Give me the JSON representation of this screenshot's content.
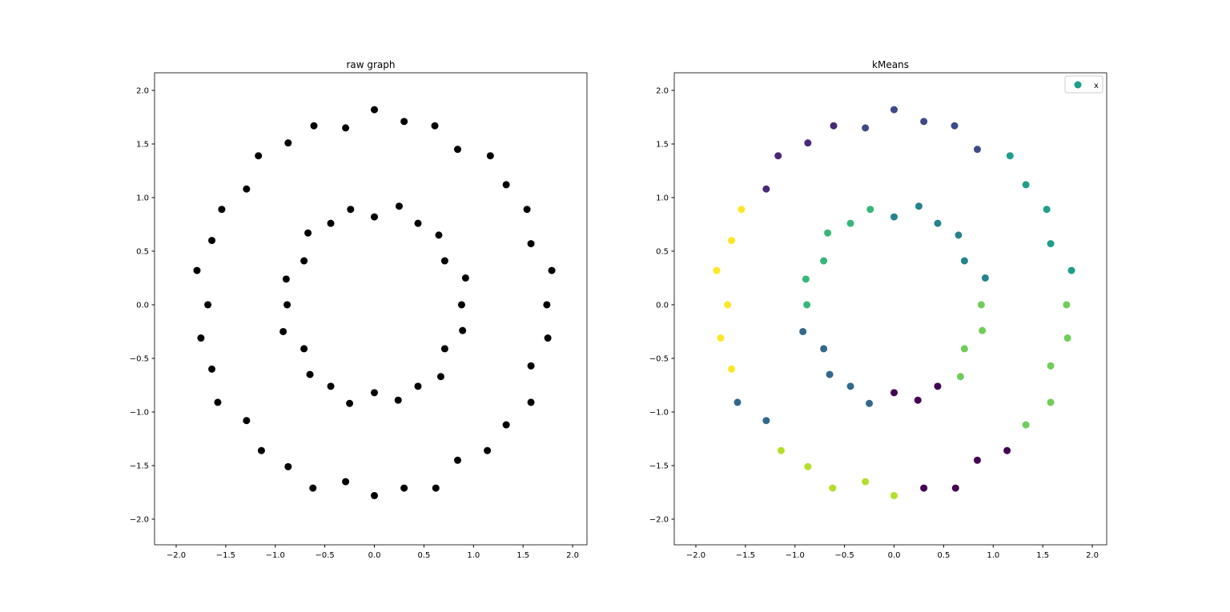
{
  "chart_data": [
    {
      "type": "scatter",
      "title": "raw graph",
      "color": "#000000",
      "x": [
        1.74,
        1.79,
        1.58,
        1.54,
        1.33,
        1.17,
        0.84,
        0.61,
        0.3,
        0,
        -0.29,
        -0.61,
        -0.87,
        -1.17,
        -1.29,
        -1.54,
        -1.64,
        -1.79,
        -1.68,
        -1.75,
        -1.64,
        -1.58,
        -1.29,
        -1.14,
        -0.87,
        -0.62,
        -0.29,
        0,
        0.3,
        0.62,
        0.84,
        1.14,
        1.33,
        1.58,
        1.58,
        1.75,
        0.88,
        0.92,
        0.71,
        0.65,
        0.44,
        0.25,
        0,
        -0.24,
        -0.44,
        -0.67,
        -0.71,
        -0.89,
        -0.88,
        -0.92,
        -0.71,
        -0.65,
        -0.44,
        -0.25,
        0,
        0.24,
        0.44,
        0.67,
        0.71,
        0.89
      ],
      "y": [
        0,
        0.32,
        0.57,
        0.89,
        1.12,
        1.39,
        1.45,
        1.67,
        1.71,
        1.82,
        1.65,
        1.67,
        1.51,
        1.39,
        1.08,
        0.89,
        0.6,
        0.32,
        0,
        -0.31,
        -0.6,
        -0.91,
        -1.08,
        -1.36,
        -1.51,
        -1.71,
        -1.65,
        -1.78,
        -1.71,
        -1.71,
        -1.45,
        -1.36,
        -1.12,
        -0.91,
        -0.57,
        -0.31,
        0,
        0.25,
        0.41,
        0.65,
        0.76,
        0.92,
        0.82,
        0.89,
        0.76,
        0.67,
        0.41,
        0.24,
        0,
        -0.25,
        -0.41,
        -0.65,
        -0.76,
        -0.92,
        -0.82,
        -0.89,
        -0.76,
        -0.67,
        -0.41,
        -0.24
      ],
      "xlim": [
        -2.218,
        2.145
      ],
      "ylim": [
        -2.239,
        2.164
      ],
      "xticks": [
        {
          "value": -2.0,
          "label": "−2.0"
        },
        {
          "value": -1.5,
          "label": "−1.5"
        },
        {
          "value": -1.0,
          "label": "−1.0"
        },
        {
          "value": -0.5,
          "label": "−0.5"
        },
        {
          "value": 0.0,
          "label": "0.0"
        },
        {
          "value": 0.5,
          "label": "0.5"
        },
        {
          "value": 1.0,
          "label": "1.0"
        },
        {
          "value": 1.5,
          "label": "1.5"
        },
        {
          "value": 2.0,
          "label": "2.0"
        }
      ],
      "yticks": [
        {
          "value": -2.0,
          "label": "−2.0"
        },
        {
          "value": -1.5,
          "label": "−1.5"
        },
        {
          "value": -1.0,
          "label": "−1.0"
        },
        {
          "value": -0.5,
          "label": "−0.5"
        },
        {
          "value": 0.0,
          "label": "0.0"
        },
        {
          "value": 0.5,
          "label": "0.5"
        },
        {
          "value": 1.0,
          "label": "1.0"
        },
        {
          "value": 1.5,
          "label": "1.5"
        },
        {
          "value": 2.0,
          "label": "2.0"
        }
      ]
    },
    {
      "type": "scatter",
      "title": "kMeans",
      "legend": "upper right",
      "series": [
        {
          "name": "x",
          "color": "#1f9e89",
          "x": [
            1.74,
            1.79,
            1.58,
            1.54,
            1.33,
            1.17,
            0.84,
            0.61,
            0.3,
            0,
            -0.29,
            -0.61,
            -0.87,
            -1.17,
            -1.29,
            -1.54,
            -1.64,
            -1.79,
            -1.68,
            -1.75,
            -1.64,
            -1.58,
            -1.29,
            -1.14,
            -0.87,
            -0.62,
            -0.29,
            0,
            0.3,
            0.62,
            0.84,
            1.14,
            1.33,
            1.58,
            1.58,
            1.75,
            0.88,
            0.92,
            0.71,
            0.65,
            0.44,
            0.25,
            0,
            -0.24,
            -0.44,
            -0.67,
            -0.71,
            -0.89,
            -0.88,
            -0.92,
            -0.71,
            -0.65,
            -0.44,
            -0.25,
            0,
            0.24,
            0.44,
            0.67,
            0.71,
            0.89
          ],
          "y": [
            0,
            0.32,
            0.57,
            0.89,
            1.12,
            1.39,
            1.45,
            1.67,
            1.71,
            1.82,
            1.65,
            1.67,
            1.51,
            1.39,
            1.08,
            0.89,
            0.6,
            0.32,
            0,
            -0.31,
            -0.6,
            -0.91,
            -1.08,
            -1.36,
            -1.51,
            -1.71,
            -1.65,
            -1.78,
            -1.71,
            -1.71,
            -1.45,
            -1.36,
            -1.12,
            -0.91,
            -0.57,
            -0.31,
            0,
            0.25,
            0.41,
            0.65,
            0.76,
            0.92,
            0.82,
            0.89,
            0.76,
            0.67,
            0.41,
            0.24,
            0,
            -0.25,
            -0.41,
            -0.65,
            -0.76,
            -0.92,
            -0.82,
            -0.89,
            -0.76,
            -0.67,
            -0.41,
            -0.24
          ],
          "colors": [
            "#6ece58",
            "#1f9e89",
            "#1f9e89",
            "#1f9e89",
            "#1f9e89",
            "#1f9e89",
            "#3e4989",
            "#3e4989",
            "#3e4989",
            "#3e4989",
            "#3e4989",
            "#482878",
            "#482878",
            "#482878",
            "#482878",
            "#fde725",
            "#fde725",
            "#fde725",
            "#fde725",
            "#fde725",
            "#fde725",
            "#31688e",
            "#31688e",
            "#b5de2b",
            "#b5de2b",
            "#b5de2b",
            "#b5de2b",
            "#b5de2b",
            "#440154",
            "#440154",
            "#440154",
            "#440154",
            "#6ece58",
            "#6ece58",
            "#6ece58",
            "#6ece58",
            "#6ece58",
            "#26828e",
            "#26828e",
            "#26828e",
            "#26828e",
            "#26828e",
            "#26828e",
            "#35b779",
            "#35b779",
            "#35b779",
            "#35b779",
            "#35b779",
            "#35b779",
            "#31688e",
            "#31688e",
            "#31688e",
            "#31688e",
            "#31688e",
            "#440154",
            "#440154",
            "#440154",
            "#6ece58",
            "#6ece58",
            "#6ece58"
          ]
        }
      ],
      "xlim": [
        -2.218,
        2.145
      ],
      "ylim": [
        -2.239,
        2.164
      ],
      "xticks": [
        {
          "value": -2.0,
          "label": "−2.0"
        },
        {
          "value": -1.5,
          "label": "−1.5"
        },
        {
          "value": -1.0,
          "label": "−1.0"
        },
        {
          "value": -0.5,
          "label": "−0.5"
        },
        {
          "value": 0.0,
          "label": "0.0"
        },
        {
          "value": 0.5,
          "label": "0.5"
        },
        {
          "value": 1.0,
          "label": "1.0"
        },
        {
          "value": 1.5,
          "label": "1.5"
        },
        {
          "value": 2.0,
          "label": "2.0"
        }
      ],
      "yticks": [
        {
          "value": -2.0,
          "label": "−2.0"
        },
        {
          "value": -1.5,
          "label": "−1.5"
        },
        {
          "value": -1.0,
          "label": "−1.0"
        },
        {
          "value": -0.5,
          "label": "−0.5"
        },
        {
          "value": 0.0,
          "label": "0.0"
        },
        {
          "value": 0.5,
          "label": "0.5"
        },
        {
          "value": 1.0,
          "label": "1.0"
        },
        {
          "value": 1.5,
          "label": "1.5"
        },
        {
          "value": 2.0,
          "label": "2.0"
        }
      ]
    }
  ]
}
